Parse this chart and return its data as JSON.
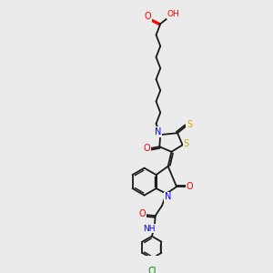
{
  "bg_color": "#ebebeb",
  "atom_colors": {
    "O": "#ff0000",
    "N": "#0000ff",
    "S": "#ccaa00",
    "Cl": "#008800",
    "H": "#888888"
  },
  "bond_color": "#1a1a1a",
  "figsize": [
    3.0,
    3.0
  ],
  "dpi": 100
}
